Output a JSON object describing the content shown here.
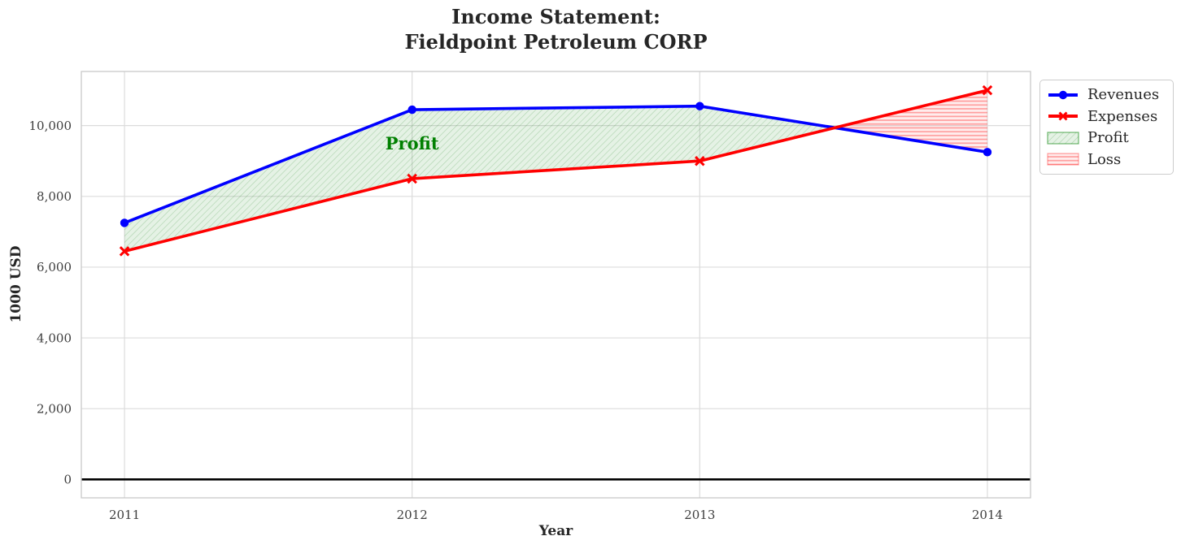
{
  "title": {
    "line1": "Income Statement:",
    "line2": "Fieldpoint Petroleum CORP"
  },
  "chart_data": {
    "type": "line",
    "title": "Income Statement: Fieldpoint Petroleum CORP",
    "xlabel": "Year",
    "ylabel": "1000 USD",
    "x": [
      2011,
      2012,
      2013,
      2014
    ],
    "series": [
      {
        "name": "Revenues",
        "values": [
          7250,
          10450,
          10550,
          9250
        ],
        "color": "#0000ff",
        "marker": "circle"
      },
      {
        "name": "Expenses",
        "values": [
          6450,
          8500,
          9000,
          11000
        ],
        "color": "#ff0000",
        "marker": "x"
      }
    ],
    "fills": [
      {
        "name": "Profit",
        "rule": "where revenues > expenses",
        "face": "rgba(0,128,0,0.10)",
        "hatch": "diagonal",
        "hatch_color": "rgba(0,110,0,0.25)",
        "edge": "rgba(0,128,0,0.55)"
      },
      {
        "name": "Loss",
        "rule": "where expenses > revenues",
        "face": "rgba(255,0,0,0.07)",
        "hatch": "horizontal",
        "hatch_color": "rgba(255,0,0,0.35)",
        "edge": "rgba(255,0,0,0.35)"
      }
    ],
    "annotation": {
      "text": "Profit",
      "x": 2012,
      "y": 9500,
      "color": "#008000"
    },
    "xlim": [
      2010.85,
      2014.15
    ],
    "ylim": [
      -520,
      11530
    ],
    "xticks": [
      2011,
      2012,
      2013,
      2014
    ],
    "xtick_labels": [
      "2011",
      "2012",
      "2013",
      "2014"
    ],
    "yticks": [
      0,
      2000,
      4000,
      6000,
      8000,
      10000
    ],
    "ytick_labels": [
      "0",
      "2,000",
      "4,000",
      "6,000",
      "8,000",
      "10,000"
    ],
    "grid": true,
    "zero_line": true,
    "legend_position": "outside upper right"
  },
  "legend": {
    "items": [
      {
        "label": "Revenues",
        "swatch": "blue-line-circle"
      },
      {
        "label": "Expenses",
        "swatch": "red-line-x"
      },
      {
        "label": "Profit",
        "swatch": "green-hatch-patch"
      },
      {
        "label": "Loss",
        "swatch": "red-hatch-patch"
      }
    ]
  },
  "colors": {
    "grid": "#dcdcdc",
    "spine": "#c9c9c9",
    "tick_text": "#3d3d3d",
    "title_text": "#262626",
    "zero_line": "#000000"
  }
}
